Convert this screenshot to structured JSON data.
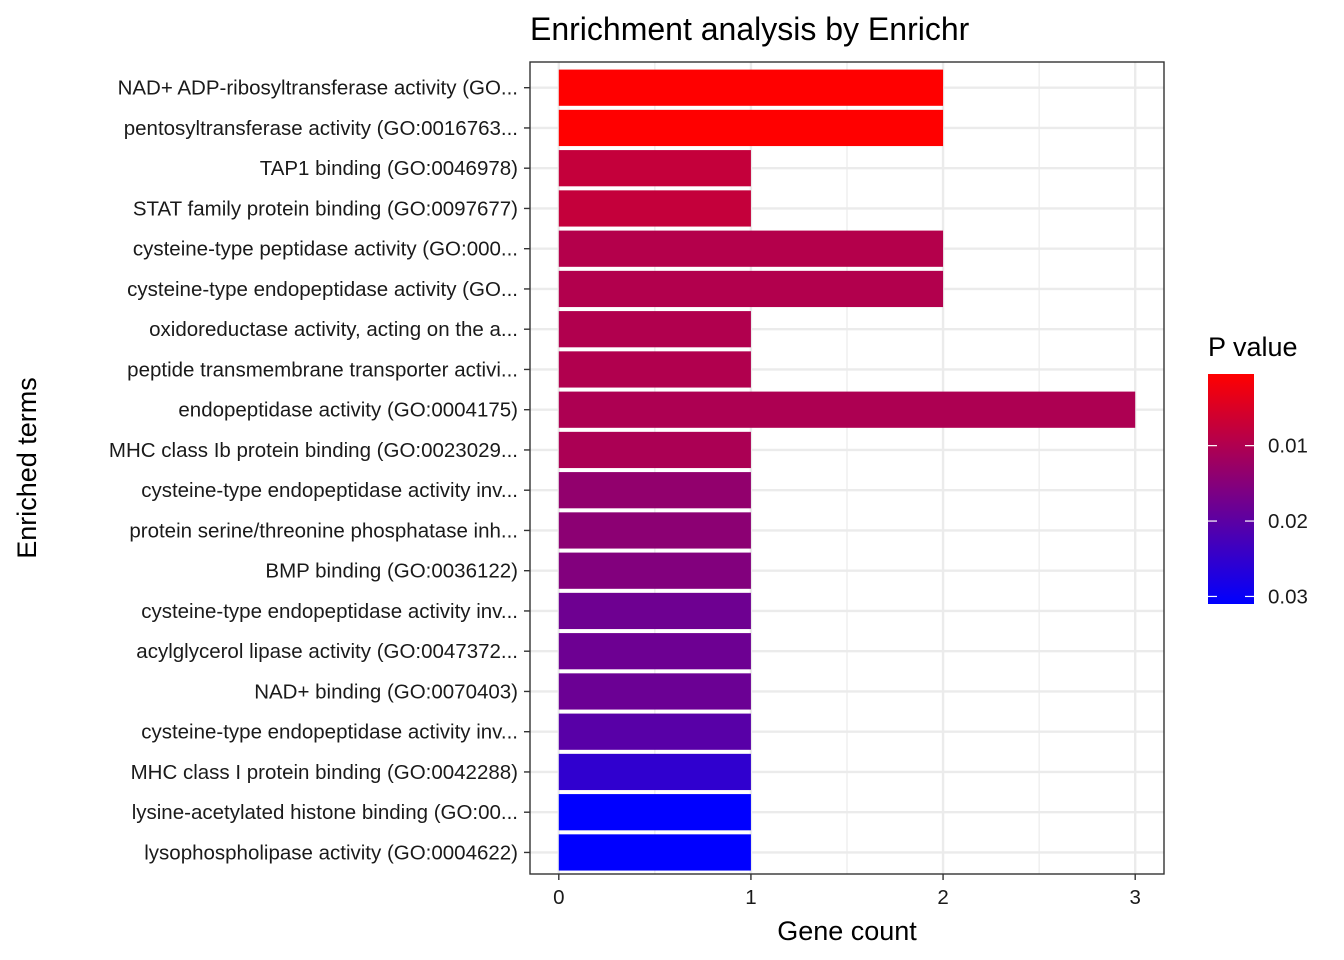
{
  "chart_data": {
    "type": "bar",
    "orientation": "horizontal",
    "title": "Enrichment analysis by Enrichr",
    "xlabel": "Gene count",
    "ylabel": "Enriched terms",
    "xlim": [
      0,
      3
    ],
    "xticks": [
      0,
      1,
      2,
      3
    ],
    "grid": true,
    "categories": [
      "NAD+ ADP-ribosyltransferase activity (GO...",
      "pentosyltransferase activity (GO:0016763...",
      "TAP1 binding (GO:0046978)",
      "STAT family protein binding (GO:0097677)",
      "cysteine-type peptidase activity (GO:000...",
      "cysteine-type endopeptidase activity (GO...",
      "oxidoreductase activity, acting on the a...",
      "peptide transmembrane transporter activi...",
      "endopeptidase activity (GO:0004175)",
      "MHC class Ib protein binding (GO:0023029...",
      "cysteine-type endopeptidase activity inv...",
      "protein serine/threonine phosphatase inh...",
      "BMP binding (GO:0036122)",
      "cysteine-type endopeptidase activity inv...",
      "acylglycerol lipase activity (GO:0047372...",
      "NAD+ binding (GO:0070403)",
      "cysteine-type endopeptidase activity inv...",
      "MHC class I protein binding (GO:0042288)",
      "lysine-acetylated histone binding (GO:00...",
      "lysophospholipase activity (GO:0004622)"
    ],
    "values": [
      2,
      2,
      1,
      1,
      2,
      2,
      1,
      1,
      3,
      1,
      1,
      1,
      1,
      1,
      1,
      1,
      1,
      1,
      1,
      1
    ],
    "p_values": [
      0.0005,
      0.0005,
      0.0075,
      0.0075,
      0.0095,
      0.0097,
      0.0098,
      0.0098,
      0.0103,
      0.0105,
      0.0135,
      0.0142,
      0.0155,
      0.0178,
      0.018,
      0.0182,
      0.0205,
      0.0252,
      0.031,
      0.031
    ],
    "legend": {
      "title": "P value",
      "position": "right",
      "range": [
        0.0005,
        0.031
      ],
      "ticks": [
        0.01,
        0.02,
        0.03
      ],
      "tick_labels": [
        "0.01",
        "0.02",
        "0.03"
      ],
      "low_color": "#FF0000",
      "high_color": "#0000FF"
    }
  }
}
